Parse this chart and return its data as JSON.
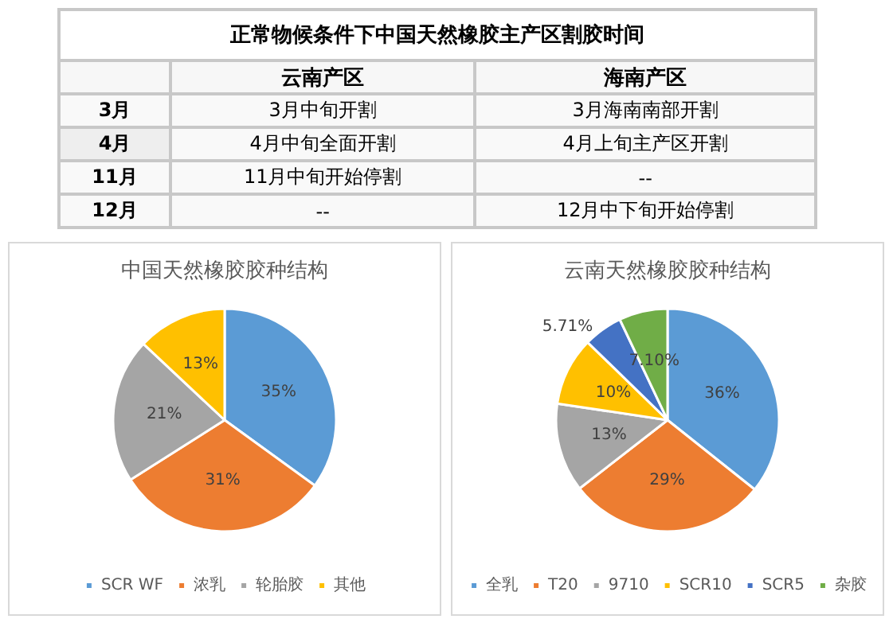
{
  "chart_data": [
    {
      "type": "other",
      "title": "正常物候条件下中国天然橡胶主产区割胶时间",
      "annotations": [
        "云南产区",
        "海南产区",
        "3月",
        "3月中旬开割",
        "3月海南南部开割",
        "4月",
        "4月中旬全面开割",
        "4月上旬主产区开割",
        "11月",
        "11月中旬开始停割",
        "--",
        "12月",
        "--",
        "12月中下旬开始停割"
      ]
    },
    {
      "type": "pie",
      "title": "中国天然橡胶胶种结构",
      "categories": [
        "SCR WF",
        "浓乳",
        "轮胎胶",
        "其他"
      ],
      "values": [
        35,
        31,
        21,
        13
      ],
      "colors": [
        "#5b9bd5",
        "#ed7d31",
        "#a5a5a5",
        "#ffc000"
      ],
      "value_labels": [
        "35%",
        "31%",
        "21%",
        "13%"
      ],
      "legend": "bottom"
    },
    {
      "type": "pie",
      "title": "云南天然橡胶胶种结构",
      "categories": [
        "全乳",
        "T20",
        "9710",
        "SCR10",
        "SCR5",
        "杂胶"
      ],
      "values": [
        36,
        29,
        13,
        10,
        5.71,
        7.1
      ],
      "colors": [
        "#5b9bd5",
        "#ed7d31",
        "#a5a5a5",
        "#ffc000",
        "#4472c4",
        "#70ad47"
      ],
      "value_labels": [
        "36%",
        "29%",
        "13%",
        "10%",
        "5.71%",
        "7.10%"
      ],
      "legend": "bottom"
    }
  ]
}
